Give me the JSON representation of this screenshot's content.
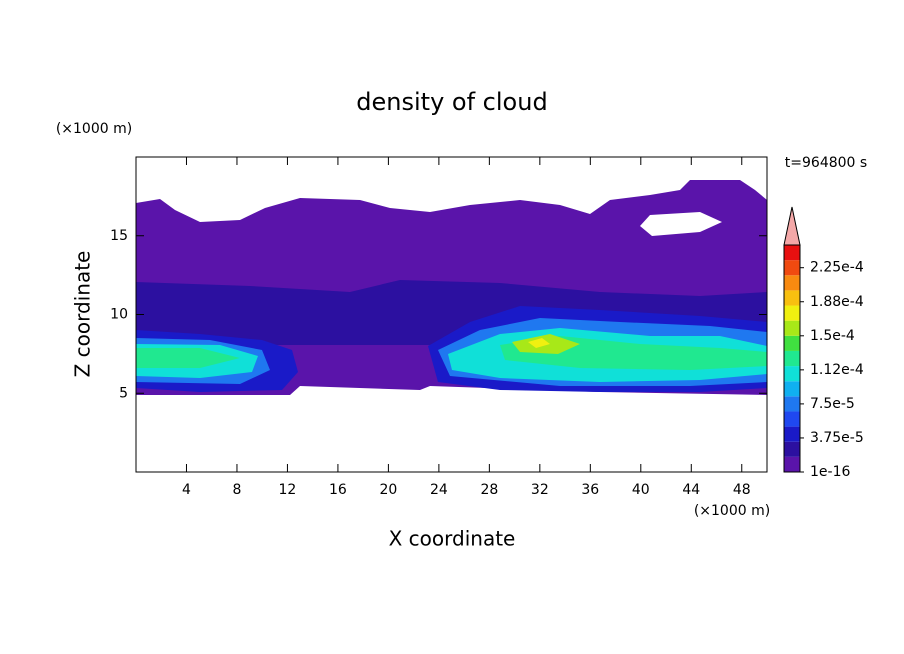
{
  "chart_data": {
    "type": "contour",
    "title": "density of cloud",
    "xlabel": "X coordinate",
    "ylabel": "Z coordinate",
    "x_unit": "(×1000 m)",
    "y_unit": "(×1000 m)",
    "time_label": "t=964800 s",
    "xlim": [
      0,
      50
    ],
    "xticks": [
      4,
      8,
      12,
      16,
      20,
      24,
      28,
      32,
      36,
      40,
      44,
      48
    ],
    "ylim": [
      0,
      20
    ],
    "yticks": [
      5,
      10,
      15
    ],
    "colorbar": {
      "lim": [
        0,
        0.00025
      ],
      "ticks": [
        1e-16,
        {
          "value": 3.75e-05,
          "label": "3.75e-5"
        },
        {
          "value": 7.5e-05,
          "label": "7.5e-5"
        },
        {
          "value": 0.0001125,
          "label": "1.12e-4"
        },
        {
          "value": 0.00015,
          "label": "1.5e-4"
        },
        {
          "value": 0.0001875,
          "label": "1.88e-4"
        },
        {
          "value": 0.000225,
          "label": "2.25e-4"
        }
      ],
      "colors": [
        "#5a14aa",
        "#2c10a0",
        "#1a1ac8",
        "#1f48f0",
        "#1f78f0",
        "#10b0f0",
        "#10e0d8",
        "#20e890",
        "#40e040",
        "#a8e818",
        "#f0f010",
        "#f8c010",
        "#f88a10",
        "#f04a10",
        "#e81010"
      ],
      "extend_color": "#f4a8a8"
    }
  }
}
